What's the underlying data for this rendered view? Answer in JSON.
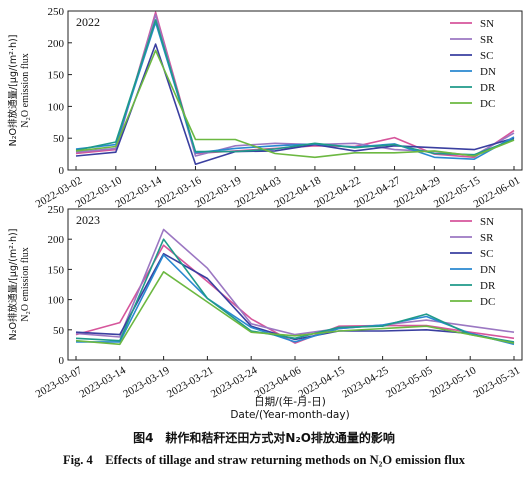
{
  "chart_data": [
    {
      "type": "line",
      "panel_label": "2022",
      "ylabel_cn": "N₂O排放通量/[μg/(m²·h)]",
      "ylabel_en": "N₂O emission flux",
      "ylim": [
        0,
        250
      ],
      "yticks": [
        "0",
        "50",
        "100",
        "150",
        "200",
        "250"
      ],
      "categories": [
        "2022-03-02",
        "2022-03-10",
        "2022-03-14",
        "2022-03-16",
        "2022-03-19",
        "2022-04-03",
        "2022-04-18",
        "2022-04-22",
        "2022-04-27",
        "2022-04-29",
        "2022-05-15",
        "2022-06-01"
      ],
      "series": [
        {
          "name": "SN",
          "color": "#d6559b",
          "values": [
            26,
            32,
            248,
            26,
            30,
            34,
            38,
            37,
            51,
            25,
            20,
            62
          ]
        },
        {
          "name": "SR",
          "color": "#9b77c2",
          "values": [
            28,
            34,
            244,
            22,
            38,
            42,
            40,
            42,
            32,
            29,
            23,
            58
          ]
        },
        {
          "name": "SC",
          "color": "#3a3fa0",
          "values": [
            22,
            28,
            198,
            9,
            29,
            30,
            40,
            30,
            38,
            35,
            32,
            50
          ]
        },
        {
          "name": "DN",
          "color": "#2a88d0",
          "values": [
            33,
            40,
            232,
            27,
            34,
            38,
            41,
            36,
            41,
            20,
            17,
            52
          ]
        },
        {
          "name": "DR",
          "color": "#1f9a8a",
          "values": [
            31,
            44,
            236,
            29,
            29,
            33,
            42,
            35,
            40,
            26,
            24,
            48
          ]
        },
        {
          "name": "DC",
          "color": "#6cb841",
          "values": [
            30,
            37,
            188,
            48,
            48,
            26,
            20,
            27,
            27,
            30,
            22,
            47
          ]
        }
      ]
    },
    {
      "type": "line",
      "panel_label": "2023",
      "ylabel_cn": "N₂O排放通量/[μg/(m²·h)]",
      "ylabel_en": "N₂O emission flux",
      "ylim": [
        0,
        250
      ],
      "yticks": [
        "0",
        "50",
        "100",
        "150",
        "200",
        "250"
      ],
      "xlabel": "日期/(年-月-日)\nDate/(Year-month-day)",
      "categories": [
        "2023-03-07",
        "2023-03-14",
        "2023-03-19",
        "2023-03-21",
        "2023-03-24",
        "2023-04-06",
        "2023-04-15",
        "2023-04-25",
        "2023-05-05",
        "2023-05-10",
        "2023-05-31"
      ],
      "series": [
        {
          "name": "SN",
          "color": "#d6559b",
          "values": [
            42,
            62,
            190,
            130,
            68,
            28,
            56,
            57,
            57,
            46,
            36
          ]
        },
        {
          "name": "SR",
          "color": "#9b77c2",
          "values": [
            44,
            38,
            216,
            152,
            60,
            42,
            52,
            58,
            66,
            56,
            46
          ]
        },
        {
          "name": "SC",
          "color": "#3a3fa0",
          "values": [
            46,
            42,
            176,
            135,
            56,
            34,
            48,
            48,
            50,
            44,
            28
          ]
        },
        {
          "name": "DN",
          "color": "#2a88d0",
          "values": [
            30,
            30,
            174,
            102,
            54,
            30,
            52,
            58,
            72,
            44,
            26
          ]
        },
        {
          "name": "DR",
          "color": "#1f9a8a",
          "values": [
            36,
            32,
            200,
            102,
            48,
            36,
            54,
            56,
            76,
            42,
            30
          ]
        },
        {
          "name": "DC",
          "color": "#6cb841",
          "values": [
            32,
            26,
            146,
            96,
            46,
            40,
            48,
            52,
            56,
            42,
            28
          ]
        }
      ]
    }
  ],
  "caption": {
    "cn": "图4　耕作和秸秆还田方式对N₂O排放通量的影响",
    "en": "Fig. 4　Effects of tillage and straw returning methods on N₂O emission flux"
  }
}
